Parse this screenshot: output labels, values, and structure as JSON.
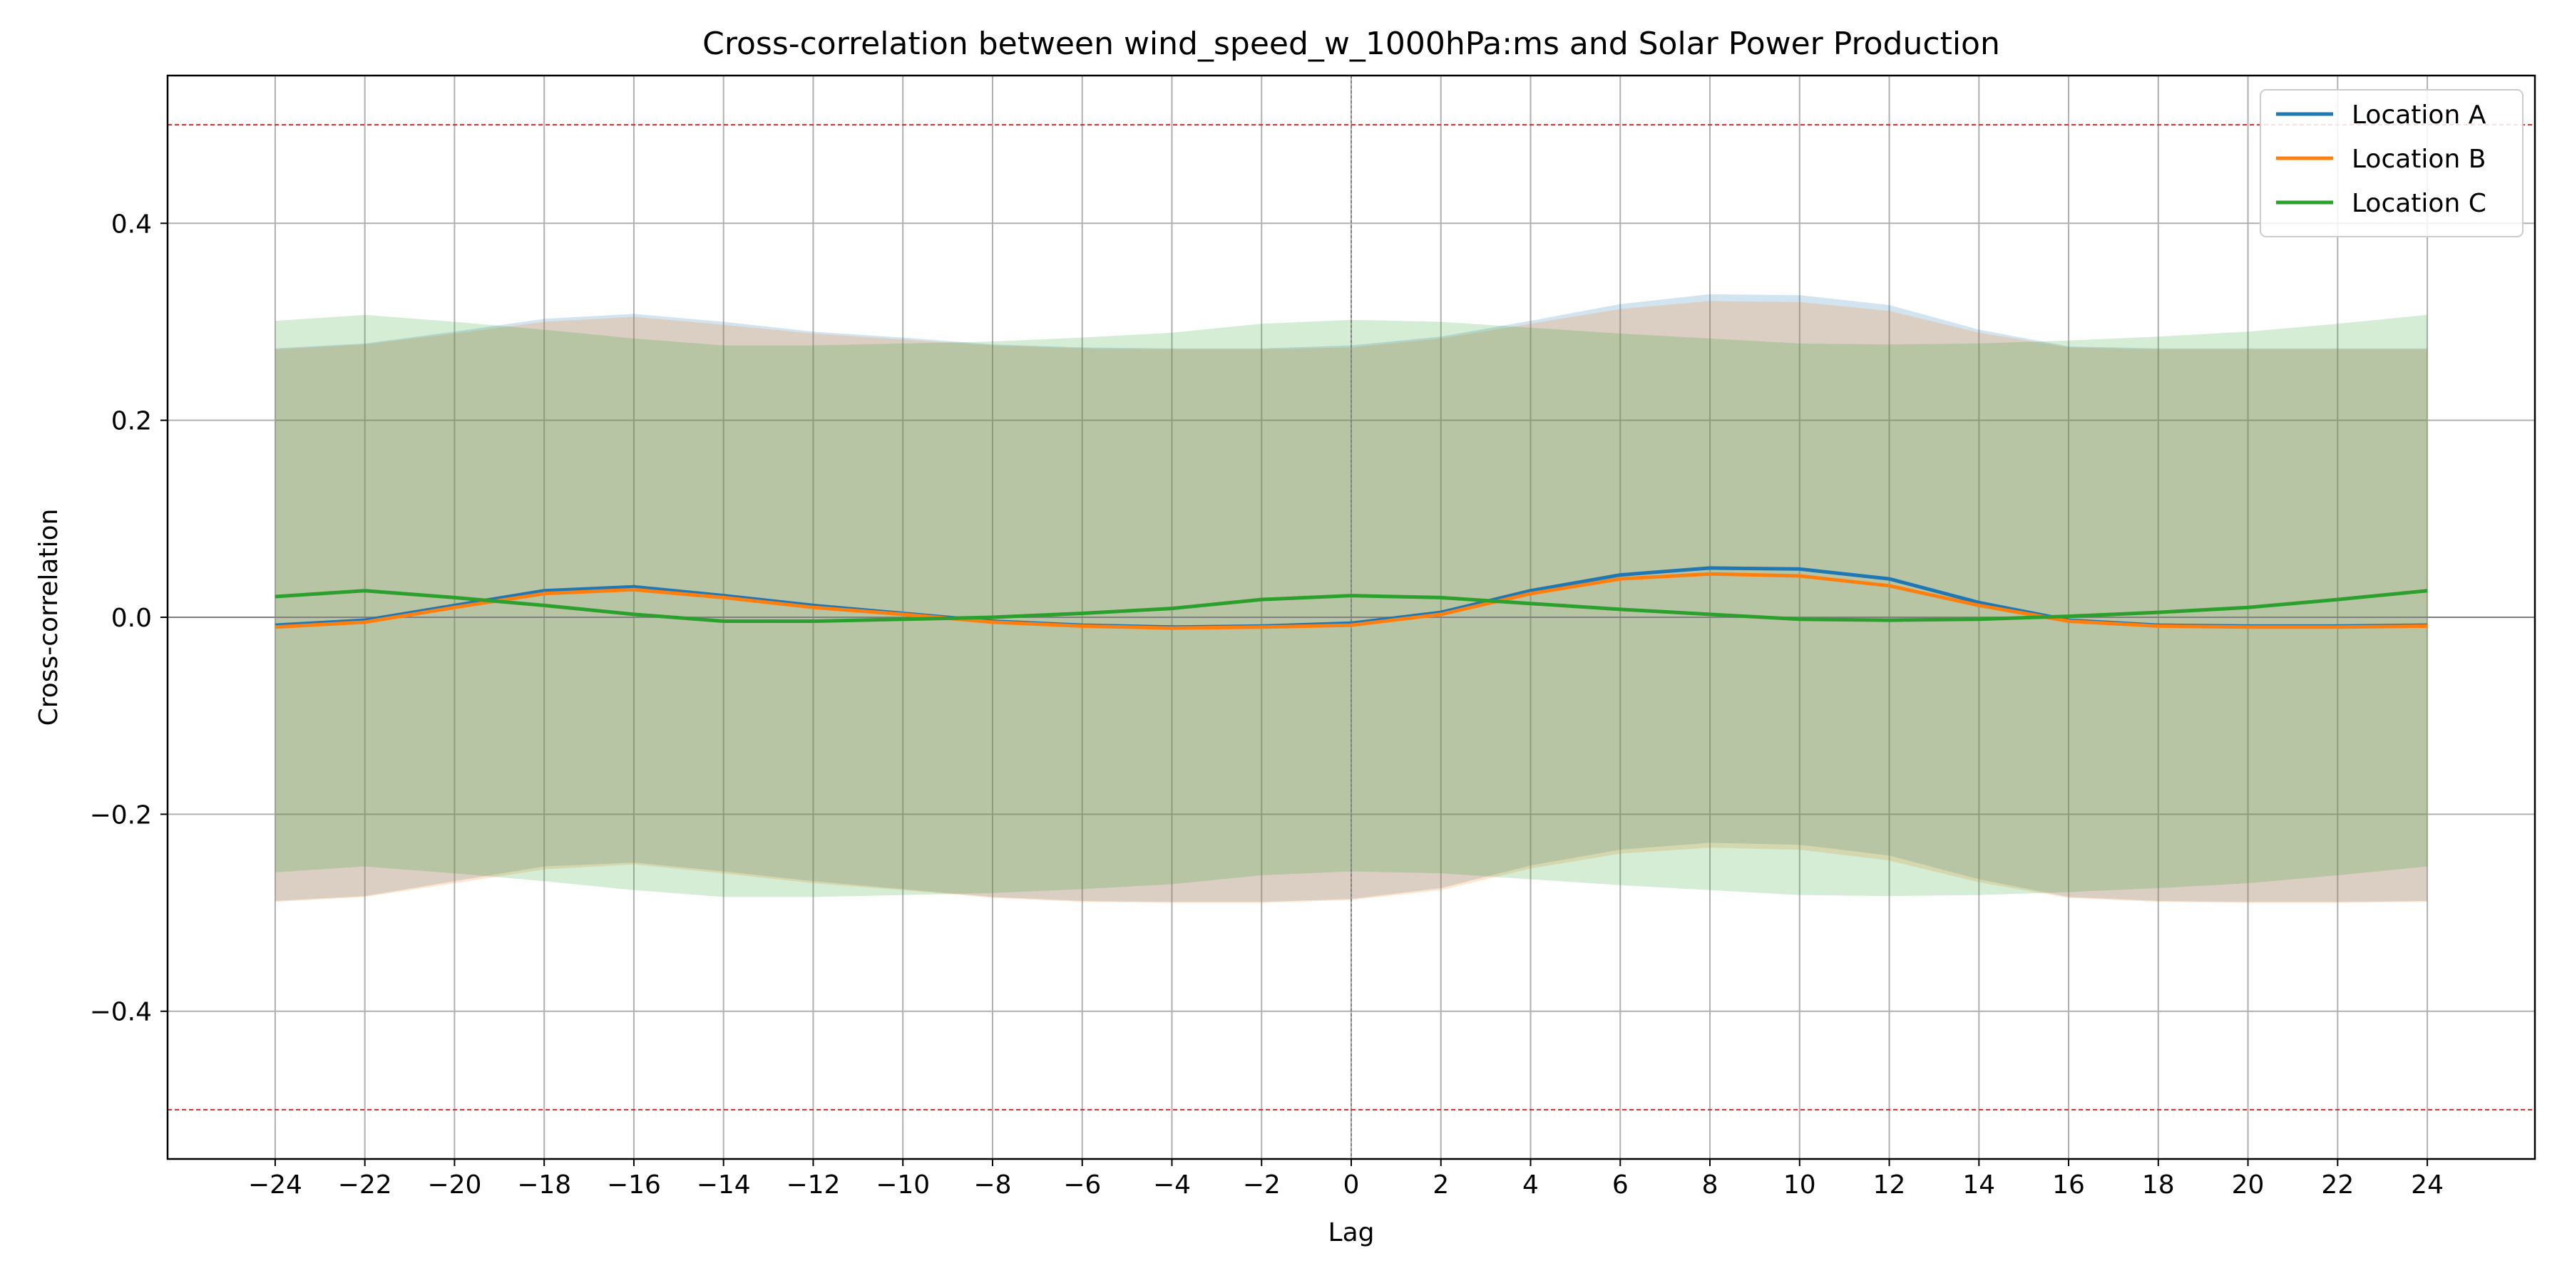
{
  "chart_data": {
    "type": "line",
    "title": "Cross-correlation between wind_speed_w_1000hPa:ms and Solar Power Production",
    "xlabel": "Lag",
    "ylabel": "Cross-correlation",
    "xlim": [
      -26.4,
      26.4
    ],
    "ylim": [
      -0.55,
      0.55
    ],
    "x_ticks": [
      -24,
      -22,
      -20,
      -18,
      -16,
      -14,
      -12,
      -10,
      -8,
      -6,
      -4,
      -2,
      0,
      2,
      4,
      6,
      8,
      10,
      12,
      14,
      16,
      18,
      20,
      22,
      24
    ],
    "x_tick_labels": [
      "−24",
      "−22",
      "−20",
      "−18",
      "−16",
      "−14",
      "−12",
      "−10",
      "−8",
      "−6",
      "−4",
      "−2",
      "0",
      "2",
      "4",
      "6",
      "8",
      "10",
      "12",
      "14",
      "16",
      "18",
      "20",
      "22",
      "24"
    ],
    "y_ticks": [
      -0.4,
      -0.2,
      0.0,
      0.2,
      0.4
    ],
    "y_tick_labels": [
      "−0.4",
      "−0.2",
      "0.0",
      "0.2",
      "0.4"
    ],
    "grid": true,
    "legend_position": "top-right",
    "threshold_lines": [
      0.5,
      -0.5
    ],
    "threshold_color": "#d62728",
    "zero_line_color": "#808080",
    "x": [
      -24,
      -22,
      -20,
      -18,
      -16,
      -14,
      -12,
      -10,
      -8,
      -6,
      -4,
      -2,
      0,
      2,
      4,
      6,
      8,
      10,
      12,
      14,
      16,
      18,
      20,
      22,
      24
    ],
    "series": [
      {
        "name": "Location A",
        "color": "#1f77b4",
        "values": [
          -0.008,
          -0.003,
          0.012,
          0.027,
          0.031,
          0.022,
          0.012,
          0.004,
          -0.004,
          -0.008,
          -0.01,
          -0.009,
          -0.006,
          0.005,
          0.027,
          0.043,
          0.05,
          0.049,
          0.039,
          0.015,
          -0.003,
          -0.008,
          -0.009,
          -0.009,
          -0.008
        ],
        "band_upper": [
          0.273,
          0.278,
          0.29,
          0.303,
          0.308,
          0.3,
          0.29,
          0.284,
          0.277,
          0.274,
          0.273,
          0.273,
          0.276,
          0.285,
          0.301,
          0.318,
          0.328,
          0.327,
          0.317,
          0.292,
          0.275,
          0.273,
          0.273,
          0.273,
          0.273
        ],
        "band_lower": [
          -0.288,
          -0.283,
          -0.268,
          -0.253,
          -0.249,
          -0.258,
          -0.268,
          -0.276,
          -0.284,
          -0.288,
          -0.289,
          -0.289,
          -0.286,
          -0.275,
          -0.252,
          -0.236,
          -0.229,
          -0.231,
          -0.242,
          -0.266,
          -0.284,
          -0.288,
          -0.289,
          -0.289,
          -0.288
        ]
      },
      {
        "name": "Location B",
        "color": "#ff7f0e",
        "values": [
          -0.01,
          -0.005,
          0.01,
          0.024,
          0.028,
          0.02,
          0.01,
          0.003,
          -0.005,
          -0.009,
          -0.011,
          -0.01,
          -0.008,
          0.003,
          0.024,
          0.039,
          0.044,
          0.042,
          0.032,
          0.012,
          -0.004,
          -0.009,
          -0.01,
          -0.01,
          -0.009
        ],
        "band_upper": [
          0.272,
          0.277,
          0.288,
          0.3,
          0.305,
          0.297,
          0.288,
          0.282,
          0.276,
          0.273,
          0.272,
          0.272,
          0.274,
          0.283,
          0.298,
          0.313,
          0.321,
          0.32,
          0.311,
          0.289,
          0.274,
          0.272,
          0.272,
          0.272,
          0.272
        ],
        "band_lower": [
          -0.289,
          -0.284,
          -0.27,
          -0.256,
          -0.251,
          -0.26,
          -0.27,
          -0.277,
          -0.285,
          -0.289,
          -0.29,
          -0.29,
          -0.287,
          -0.277,
          -0.255,
          -0.24,
          -0.234,
          -0.236,
          -0.247,
          -0.269,
          -0.285,
          -0.289,
          -0.29,
          -0.29,
          -0.289
        ]
      },
      {
        "name": "Location C",
        "color": "#2ca02c",
        "values": [
          0.021,
          0.027,
          0.02,
          0.012,
          0.003,
          -0.004,
          -0.004,
          -0.002,
          0.0,
          0.004,
          0.009,
          0.018,
          0.022,
          0.02,
          0.014,
          0.008,
          0.003,
          -0.002,
          -0.003,
          -0.002,
          0.001,
          0.005,
          0.01,
          0.018,
          0.027
        ],
        "band_upper": [
          0.301,
          0.307,
          0.3,
          0.292,
          0.283,
          0.276,
          0.276,
          0.278,
          0.28,
          0.284,
          0.289,
          0.298,
          0.302,
          0.3,
          0.294,
          0.288,
          0.283,
          0.278,
          0.277,
          0.278,
          0.281,
          0.285,
          0.29,
          0.298,
          0.307
        ],
        "band_lower": [
          -0.259,
          -0.253,
          -0.26,
          -0.268,
          -0.277,
          -0.284,
          -0.284,
          -0.282,
          -0.28,
          -0.276,
          -0.271,
          -0.262,
          -0.258,
          -0.26,
          -0.266,
          -0.272,
          -0.277,
          -0.282,
          -0.283,
          -0.282,
          -0.279,
          -0.275,
          -0.27,
          -0.262,
          -0.253
        ]
      }
    ]
  }
}
